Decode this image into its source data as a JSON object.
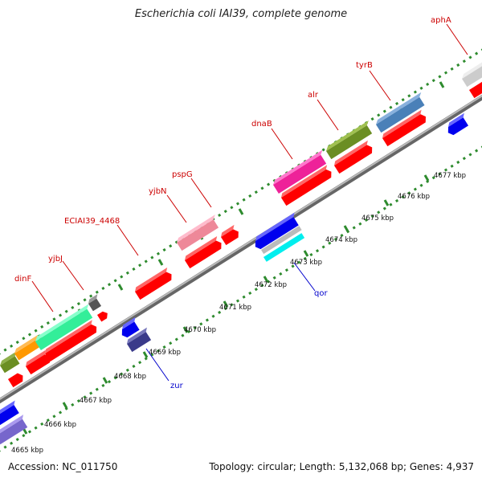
{
  "title": "Escherichia coli IAI39, complete genome",
  "footer": {
    "accession": "Accession: NC_011750",
    "summary": "Topology: circular; Length: 5,132,068 bp; Genes: 4,937"
  },
  "colors": {
    "forward_label": "#cc0000",
    "reverse_label": "#0000cc",
    "backbone": "#888888",
    "tick": "#2e8b2e"
  },
  "tick_labels": [
    "4665 kbp",
    "4666 kbp",
    "4667 kbp",
    "4668 kbp",
    "4669 kbp",
    "4670 kbp",
    "4671 kbp",
    "4672 kbp",
    "4673 kbp",
    "4674 kbp",
    "4675 kbp",
    "4676 kbp",
    "4677 kbp"
  ],
  "gene_labels": [
    {
      "name": "dinF",
      "strand": "forward"
    },
    {
      "name": "yjbJ",
      "strand": "forward"
    },
    {
      "name": "ECIAI39_4468",
      "strand": "forward"
    },
    {
      "name": "yjbN",
      "strand": "forward"
    },
    {
      "name": "pspG",
      "strand": "forward"
    },
    {
      "name": "dnaB",
      "strand": "forward"
    },
    {
      "name": "alr",
      "strand": "forward"
    },
    {
      "name": "tyrB",
      "strand": "forward"
    },
    {
      "name": "aphA",
      "strand": "forward"
    },
    {
      "name": "zur",
      "strand": "reverse"
    },
    {
      "name": "qor",
      "strand": "reverse"
    }
  ]
}
